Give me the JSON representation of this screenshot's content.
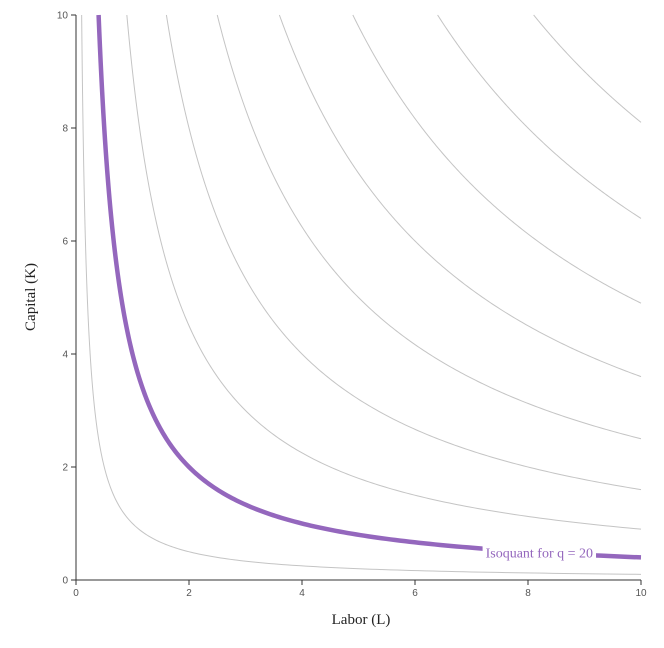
{
  "chart_data": {
    "type": "line",
    "title": "",
    "xlabel": "Labor (L)",
    "ylabel": "Capital (K)",
    "xlim": [
      0,
      10
    ],
    "ylim": [
      0,
      10
    ],
    "x_ticks": [
      "0",
      "2",
      "4",
      "6",
      "8",
      "10"
    ],
    "y_ticks": [
      "0",
      "2",
      "4",
      "6",
      "8",
      "10"
    ],
    "grid": false,
    "function": "K = (q / 10)^2 / L",
    "series_q": [
      10,
      20,
      30,
      40,
      50,
      60,
      70,
      80,
      90,
      100,
      110
    ],
    "highlight": {
      "q": 20,
      "label": "Isoquant for q = 20",
      "color": "#9467bd"
    },
    "colors": {
      "isoquant": "#c4c4c4",
      "highlight": "#9467bd",
      "axis": "#333333"
    }
  }
}
